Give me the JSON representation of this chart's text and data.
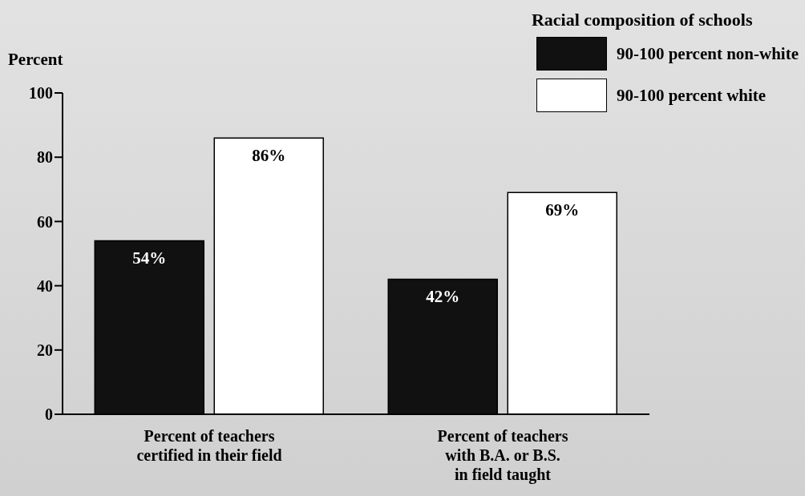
{
  "chart_data": {
    "type": "bar",
    "ylabel": "Percent",
    "legend_title": "Racial composition of schools",
    "legend": "top right",
    "categories": [
      "Percent of teachers\ncertified in their field",
      "Percent of teachers\nwith B.A. or B.S.\nin field taught"
    ],
    "series": [
      {
        "name": "90-100 percent non-white",
        "color": "#111111",
        "values": [
          54,
          42
        ],
        "value_labels": [
          "54%",
          "42%"
        ]
      },
      {
        "name": "90-100 percent white",
        "color": "#ffffff",
        "values": [
          86,
          69
        ],
        "value_labels": [
          "86%",
          "69%"
        ]
      }
    ],
    "ylim": [
      0,
      100
    ],
    "yticks": [
      0,
      20,
      40,
      60,
      80,
      100
    ],
    "grid": false
  }
}
